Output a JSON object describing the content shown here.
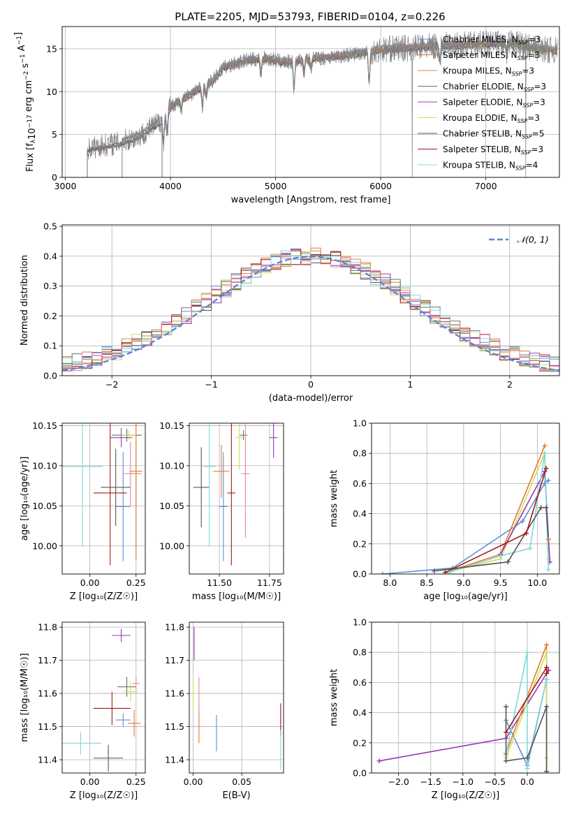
{
  "figure_title": "PLATE=2205, MJD=53793, FIBERID=0104, z=0.226",
  "colors": {
    "c0": "#5e8fd6",
    "c1": "#e8772c",
    "c2": "#c8963e",
    "c3": "#5a7a5c",
    "c4": "#9b34b8",
    "c5": "#c8e05a",
    "c6": "#555555",
    "c7": "#a01818",
    "c8": "#7fd8dc",
    "pink": "#e884a8",
    "gaussian": "#5b86d4",
    "spec_gray": "#808080"
  },
  "chart_data": [
    {
      "id": "spectrum",
      "type": "line",
      "title": "PLATE=2205, MJD=53793, FIBERID=0104, z=0.226",
      "xlabel": "wavelength [Angstrom, rest frame]",
      "ylabel_parts": [
        "Flux [f",
        "λ",
        "10",
        "−17",
        " erg cm",
        "−2",
        " s",
        "−1",
        " A",
        "−1",
        "]"
      ],
      "xlim": [
        2970,
        7700
      ],
      "ylim": [
        0,
        17.6
      ],
      "xticks": [
        3000,
        4000,
        5000,
        6000,
        7000
      ],
      "xtick_labels": [
        "3000",
        "4000",
        "5000",
        "6000",
        "7000"
      ],
      "yticks": [
        0,
        5,
        10,
        15
      ],
      "ytick_labels": [
        "0",
        "5",
        "10",
        "15"
      ],
      "grid": true,
      "legend_position": "top-right",
      "continuum": {
        "x": [
          3210,
          3300,
          3500,
          3700,
          3900,
          4000,
          4200,
          4400,
          4500,
          4700,
          4900,
          5100,
          5300,
          5500,
          5700,
          5900,
          6100,
          6300,
          6500,
          6700,
          6900,
          7100,
          7300,
          7400,
          7650
        ],
        "y": [
          3.3,
          3.6,
          4.0,
          4.8,
          6.5,
          8.2,
          9.8,
          11.2,
          12.8,
          13.6,
          13.9,
          13.4,
          13.8,
          14.0,
          14.3,
          14.7,
          15.0,
          15.1,
          15.3,
          15.4,
          15.5,
          15.6,
          15.6,
          15.2,
          14.8
        ]
      },
      "series": [
        {
          "name": "Chabrier MILES",
          "nssp": "3",
          "color": "#5e8fd6",
          "start": 3540
        },
        {
          "name": "Salpeter MILES",
          "nssp": "3",
          "color": "#e8772c",
          "start": 3540
        },
        {
          "name": "Kroupa MILES",
          "nssp": "3",
          "color": "#c8963e",
          "start": 3540
        },
        {
          "name": "Chabrier ELODIE",
          "nssp": "3",
          "color": "#5a7a5c",
          "start": 3920
        },
        {
          "name": "Salpeter ELODIE",
          "nssp": "3",
          "color": "#9b34b8",
          "start": 3920
        },
        {
          "name": "Kroupa ELODIE",
          "nssp": "3",
          "color": "#c8e05a",
          "start": 3920
        },
        {
          "name": "Chabrier STELIB",
          "nssp": "5",
          "color": "#555555",
          "start": 3210
        },
        {
          "name": "Salpeter STELIB",
          "nssp": "3",
          "color": "#a01818",
          "start": 3210
        },
        {
          "name": "Kroupa STELIB",
          "nssp": "4",
          "color": "#7fd8dc",
          "start": 3210
        }
      ],
      "nssp_label": "SSP",
      "legend_prefix": ", N"
    },
    {
      "id": "residuals",
      "type": "line",
      "xlabel": "(data-model)/error",
      "ylabel": "Normed distribution",
      "xlim": [
        -2.5,
        2.5
      ],
      "ylim": [
        0,
        0.505
      ],
      "xticks": [
        -2,
        -1,
        0,
        1,
        2
      ],
      "xtick_labels": [
        "−2",
        "−1",
        "0",
        "1",
        "2"
      ],
      "yticks": [
        0,
        0.1,
        0.2,
        0.3,
        0.4,
        0.5
      ],
      "ytick_labels": [
        "0.0",
        "0.1",
        "0.2",
        "0.3",
        "0.4",
        "0.5"
      ],
      "grid": true,
      "legend_position": "top-right",
      "legend_label": "𝒩(0, 1)",
      "bin_width": 0.1,
      "bin_start": -2.5
    },
    {
      "id": "age_vs_Z",
      "type": "scatter",
      "xlabel": "Z [log₁₀(Z/Z☉)]",
      "ylabel": "age  [log₁₀(age/yr)]",
      "xlim": [
        -0.15,
        0.3
      ],
      "ylim": [
        9.965,
        10.153
      ],
      "xticks": [
        0,
        0.25
      ],
      "xtick_labels": [
        "0.00",
        "0.25"
      ],
      "yticks": [
        10.0,
        10.05,
        10.1,
        10.15
      ],
      "ytick_labels": [
        "10.00",
        "10.05",
        "10.10",
        "10.15"
      ],
      "grid": true,
      "points": [
        {
          "x": 0.18,
          "y": 10.049,
          "xe": 0.04,
          "ye": 0.068,
          "color": "#5e8fd6"
        },
        {
          "x": 0.25,
          "y": 10.093,
          "xe": 0.035,
          "ye": 0.11,
          "color": "#e8772c"
        },
        {
          "x": 0.25,
          "y": 10.09,
          "xe": 0.03,
          "ye": 0.04,
          "color": "#c8963e"
        },
        {
          "x": 0.2,
          "y": 10.138,
          "xe": 0.08,
          "ye": 0.008,
          "color": "#5a7a5c"
        },
        {
          "x": 0.17,
          "y": 10.135,
          "xe": 0.06,
          "ye": 0.012,
          "color": "#9b34b8"
        },
        {
          "x": 0.21,
          "y": 10.138,
          "xe": 0.04,
          "ye": 0.006,
          "color": "#c8e05a"
        },
        {
          "x": 0.14,
          "y": 10.073,
          "xe": 0.08,
          "ye": 0.048,
          "color": "#555555"
        },
        {
          "x": 0.11,
          "y": 10.066,
          "xe": 0.09,
          "ye": 0.09,
          "color": "#a01818"
        },
        {
          "x": -0.04,
          "y": 10.099,
          "xe": 0.11,
          "ye": 0.1,
          "color": "#7fd8dc"
        },
        {
          "x": 0.22,
          "y": 10.09,
          "xe": 0.04,
          "ye": 0.04,
          "color": "#e884a8"
        }
      ]
    },
    {
      "id": "age_vs_mass",
      "type": "scatter",
      "xlabel": "mass [log₁₀(M/M☉)]",
      "ylabel": "",
      "xlim": [
        11.35,
        11.82
      ],
      "ylim": [
        9.965,
        10.153
      ],
      "xticks": [
        11.5,
        11.75
      ],
      "xtick_labels": [
        "11.50",
        "11.75"
      ],
      "yticks": [
        10.0,
        10.05,
        10.1,
        10.15
      ],
      "ytick_labels": [
        "10.00",
        "10.05",
        "10.10",
        "10.15"
      ],
      "grid": true,
      "points": [
        {
          "x": 11.52,
          "y": 10.049,
          "xe": 0.02,
          "ye": 0.068,
          "color": "#5e8fd6"
        },
        {
          "x": 11.51,
          "y": 10.093,
          "xe": 0.04,
          "ye": 0.033,
          "color": "#e8772c"
        },
        {
          "x": 11.62,
          "y": 10.138,
          "xe": 0.02,
          "ye": 0.006,
          "color": "#5a7a5c"
        },
        {
          "x": 11.77,
          "y": 10.135,
          "xe": 0.02,
          "ye": 0.025,
          "color": "#9b34b8"
        },
        {
          "x": 11.6,
          "y": 10.135,
          "xe": 0.02,
          "ye": 0.04,
          "color": "#c8e05a"
        },
        {
          "x": 11.41,
          "y": 10.073,
          "xe": 0.04,
          "ye": 0.05,
          "color": "#555555"
        },
        {
          "x": 11.56,
          "y": 10.066,
          "xe": 0.02,
          "ye": 0.09,
          "color": "#a01818"
        },
        {
          "x": 11.45,
          "y": 10.099,
          "xe": 0.03,
          "ye": 0.1,
          "color": "#7fd8dc"
        },
        {
          "x": 11.63,
          "y": 10.09,
          "xe": 0.02,
          "ye": 0.08,
          "color": "#e884a8"
        }
      ]
    },
    {
      "id": "weight_vs_age",
      "type": "line",
      "xlabel": "age  [log₁₀(age/yr)]",
      "ylabel": "mass weight",
      "xlim": [
        7.75,
        10.3
      ],
      "ylim": [
        0,
        1.0
      ],
      "xticks": [
        8,
        8.5,
        9,
        9.5,
        10
      ],
      "xtick_labels": [
        "8.0",
        "8.5",
        "9.0",
        "9.5",
        "10.0"
      ],
      "yticks": [
        0,
        0.2,
        0.4,
        0.6,
        0.8,
        1.0
      ],
      "ytick_labels": [
        "0.0",
        "0.2",
        "0.4",
        "0.6",
        "0.8",
        "1.0"
      ],
      "grid": true,
      "series": [
        {
          "color": "#5e8fd6",
          "x": [
            7.9,
            8.85,
            9.8,
            10.1,
            10.15
          ],
          "y": [
            0.0,
            0.04,
            0.35,
            0.6,
            0.62
          ]
        },
        {
          "color": "#e8772c",
          "x": [
            8.75,
            9.5,
            10.1
          ],
          "y": [
            0.01,
            0.13,
            0.85
          ]
        },
        {
          "color": "#c8e05a",
          "x": [
            8.75,
            9.5,
            10.1,
            10.15
          ],
          "y": [
            0.01,
            0.1,
            0.8,
            0.1
          ]
        },
        {
          "color": "#9b34b8",
          "x": [
            9.5,
            10.1,
            10.17
          ],
          "y": [
            0.13,
            0.68,
            0.08
          ]
        },
        {
          "color": "#7fd8dc",
          "x": [
            8.8,
            9.5,
            9.9,
            10.1,
            10.15
          ],
          "y": [
            0.01,
            0.12,
            0.17,
            0.8,
            0.03
          ]
        },
        {
          "color": "#555555",
          "x": [
            8.6,
            9.6,
            10.05,
            10.12,
            10.15
          ],
          "y": [
            0.02,
            0.08,
            0.44,
            0.44,
            0.23
          ]
        },
        {
          "color": "#a01818",
          "x": [
            8.75,
            9.85,
            10.12
          ],
          "y": [
            0.01,
            0.27,
            0.7
          ]
        },
        {
          "color": "#e8772c",
          "x": [
            10.15
          ],
          "y": [
            0.23
          ]
        }
      ]
    },
    {
      "id": "mass_vs_Z",
      "type": "scatter",
      "xlabel": "Z [log₁₀(Z/Z☉)]",
      "ylabel": "mass [log₁₀(M/M☉)]",
      "xlim": [
        -0.15,
        0.3
      ],
      "ylim": [
        11.36,
        11.815
      ],
      "xticks": [
        0,
        0.25
      ],
      "xtick_labels": [
        "0.00",
        "0.25"
      ],
      "yticks": [
        11.4,
        11.5,
        11.6,
        11.7,
        11.8
      ],
      "ytick_labels": [
        "11.4",
        "11.5",
        "11.6",
        "11.7",
        "11.8"
      ],
      "grid": true,
      "points": [
        {
          "x": 0.18,
          "y": 11.52,
          "xe": 0.04,
          "ye": 0.02,
          "color": "#5e8fd6"
        },
        {
          "x": 0.24,
          "y": 11.51,
          "xe": 0.035,
          "ye": 0.04,
          "color": "#e8772c"
        },
        {
          "x": 0.2,
          "y": 11.62,
          "xe": 0.05,
          "ye": 0.03,
          "color": "#5a7a5c"
        },
        {
          "x": 0.17,
          "y": 11.775,
          "xe": 0.05,
          "ye": 0.02,
          "color": "#9b34b8"
        },
        {
          "x": 0.22,
          "y": 11.605,
          "xe": 0.04,
          "ye": 0.03,
          "color": "#c8e05a"
        },
        {
          "x": 0.1,
          "y": 11.405,
          "xe": 0.08,
          "ye": 0.04,
          "color": "#555555"
        },
        {
          "x": 0.12,
          "y": 11.555,
          "xe": 0.1,
          "ye": 0.05,
          "color": "#a01818"
        },
        {
          "x": -0.05,
          "y": 11.45,
          "xe": 0.11,
          "ye": 0.035,
          "color": "#7fd8dc"
        },
        {
          "x": 0.25,
          "y": 11.63,
          "xe": 0.02,
          "ye": 0.02,
          "color": "#e884a8"
        }
      ]
    },
    {
      "id": "mass_vs_ebv",
      "type": "scatter",
      "xlabel": "E(B-V)",
      "ylabel": "",
      "xlim": [
        -0.004,
        0.093
      ],
      "ylim": [
        11.36,
        11.815
      ],
      "xticks": [
        0,
        0.05
      ],
      "xtick_labels": [
        "0.00",
        "0.05"
      ],
      "yticks": [
        11.4,
        11.5,
        11.6,
        11.7,
        11.8
      ],
      "ytick_labels": [
        "11.4",
        "11.5",
        "11.6",
        "11.7",
        "11.8"
      ],
      "grid": true,
      "points": [
        {
          "x": 0.024,
          "y": 11.48,
          "xe": 0,
          "ye": 0.055,
          "color": "#5e8fd6"
        },
        {
          "x": 0.006,
          "y": 11.5,
          "xe": 0,
          "ye": 0.05,
          "color": "#e8772c"
        },
        {
          "x": 0.001,
          "y": 11.75,
          "xe": 0,
          "ye": 0.05,
          "color": "#9b34b8"
        },
        {
          "x": 0.0,
          "y": 11.6,
          "xe": 0,
          "ye": 0.05,
          "color": "#c8e05a"
        },
        {
          "x": 0.006,
          "y": 11.6,
          "xe": 0,
          "ye": 0.05,
          "color": "#e884a8"
        },
        {
          "x": 0.09,
          "y": 11.52,
          "xe": 0,
          "ye": 0.05,
          "color": "#a01818"
        },
        {
          "x": 0.09,
          "y": 11.43,
          "xe": 0,
          "ye": 0.06,
          "color": "#7fd8dc"
        }
      ]
    },
    {
      "id": "weight_vs_Z",
      "type": "line",
      "xlabel": "Z [log₁₀(Z/Z☉)]",
      "ylabel": "mass weight",
      "xlim": [
        -2.42,
        0.5
      ],
      "ylim": [
        0,
        1.0
      ],
      "xticks": [
        -2,
        -1.5,
        -1,
        -0.5,
        0
      ],
      "xtick_labels": [
        "−2.0",
        "−1.5",
        "−1.0",
        "−0.5",
        "0.0"
      ],
      "yticks": [
        0,
        0.2,
        0.4,
        0.6,
        0.8,
        1.0
      ],
      "ytick_labels": [
        "0.0",
        "0.2",
        "0.4",
        "0.6",
        "0.8",
        "1.0"
      ],
      "grid": true,
      "series": [
        {
          "color": "#9b34b8",
          "x": [
            -2.3,
            -0.33,
            0.33,
            0.33
          ],
          "y": [
            0.08,
            0.23,
            0.68,
            0.68
          ]
        },
        {
          "color": "#5e8fd6",
          "x": [
            -0.33,
            0.0,
            0.3
          ],
          "y": [
            0.35,
            0.05,
            0.62
          ]
        },
        {
          "color": "#e8772c",
          "x": [
            -0.33,
            0.3,
            0.3
          ],
          "y": [
            0.13,
            0.85,
            0.01
          ]
        },
        {
          "color": "#c8e05a",
          "x": [
            -0.33,
            0.3,
            0.3
          ],
          "y": [
            0.1,
            0.8,
            0.1
          ]
        },
        {
          "color": "#7fd8dc",
          "x": [
            -0.33,
            0.0,
            0.0,
            0.3
          ],
          "y": [
            0.12,
            0.8,
            0.03,
            0.62
          ]
        },
        {
          "color": "#555555",
          "x": [
            -0.33,
            -0.33,
            0.0,
            0.3,
            0.3
          ],
          "y": [
            0.44,
            0.08,
            0.1,
            0.44,
            0.01
          ]
        },
        {
          "color": "#a01818",
          "x": [
            -0.33,
            0.3,
            0.3
          ],
          "y": [
            0.27,
            0.7,
            0.66
          ]
        }
      ]
    }
  ]
}
